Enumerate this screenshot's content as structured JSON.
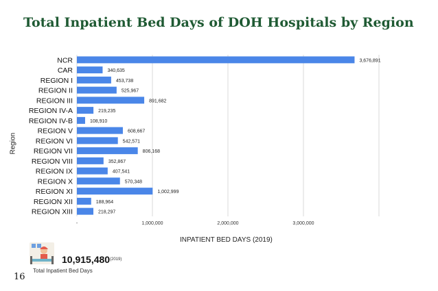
{
  "page": {
    "title": "Total Inpatient Bed Days of DOH Hospitals by Region",
    "page_number": "16"
  },
  "summary": {
    "total_value": "10,915,480",
    "year": "(2019)",
    "caption": "Total Inpatient Bed Days",
    "icon": "hospital-bed-icon"
  },
  "colors": {
    "bar": "#4a86e8",
    "title": "#1f5a33",
    "grid": "#d9d9d9"
  },
  "chart_data": {
    "type": "bar",
    "orientation": "horizontal",
    "xlabel": "INPATIENT BED DAYS (2019)",
    "ylabel": "Region",
    "xlim": [
      0,
      4000000
    ],
    "x_ticks": [
      0,
      1000000,
      2000000,
      3000000
    ],
    "x_tick_labels": [
      "-",
      "1,000,000",
      "2,000,000",
      "3,000,000"
    ],
    "grid": true,
    "legend": "none",
    "categories": [
      "NCR",
      "CAR",
      "REGION I",
      "REGION II",
      "REGION III",
      "REGION IV-A",
      "REGION IV-B",
      "REGION V",
      "REGION VI",
      "REGION VII",
      "REGION VIII",
      "REGION IX",
      "REGION X",
      "REGION XI",
      "REGION XII",
      "REGION XIII"
    ],
    "values": [
      3676891,
      340635,
      453738,
      525967,
      891682,
      219235,
      108910,
      608667,
      542571,
      806168,
      352867,
      407541,
      570348,
      1002999,
      188964,
      218297
    ],
    "value_labels": [
      "3,676,891",
      "340,635",
      "453,738",
      "525,967",
      "891,682",
      "219,235",
      "108,910",
      "608,667",
      "542,571",
      "806,168",
      "352,867",
      "407,541",
      "570,348",
      "1,002,999",
      "188,964",
      "218,297"
    ]
  }
}
